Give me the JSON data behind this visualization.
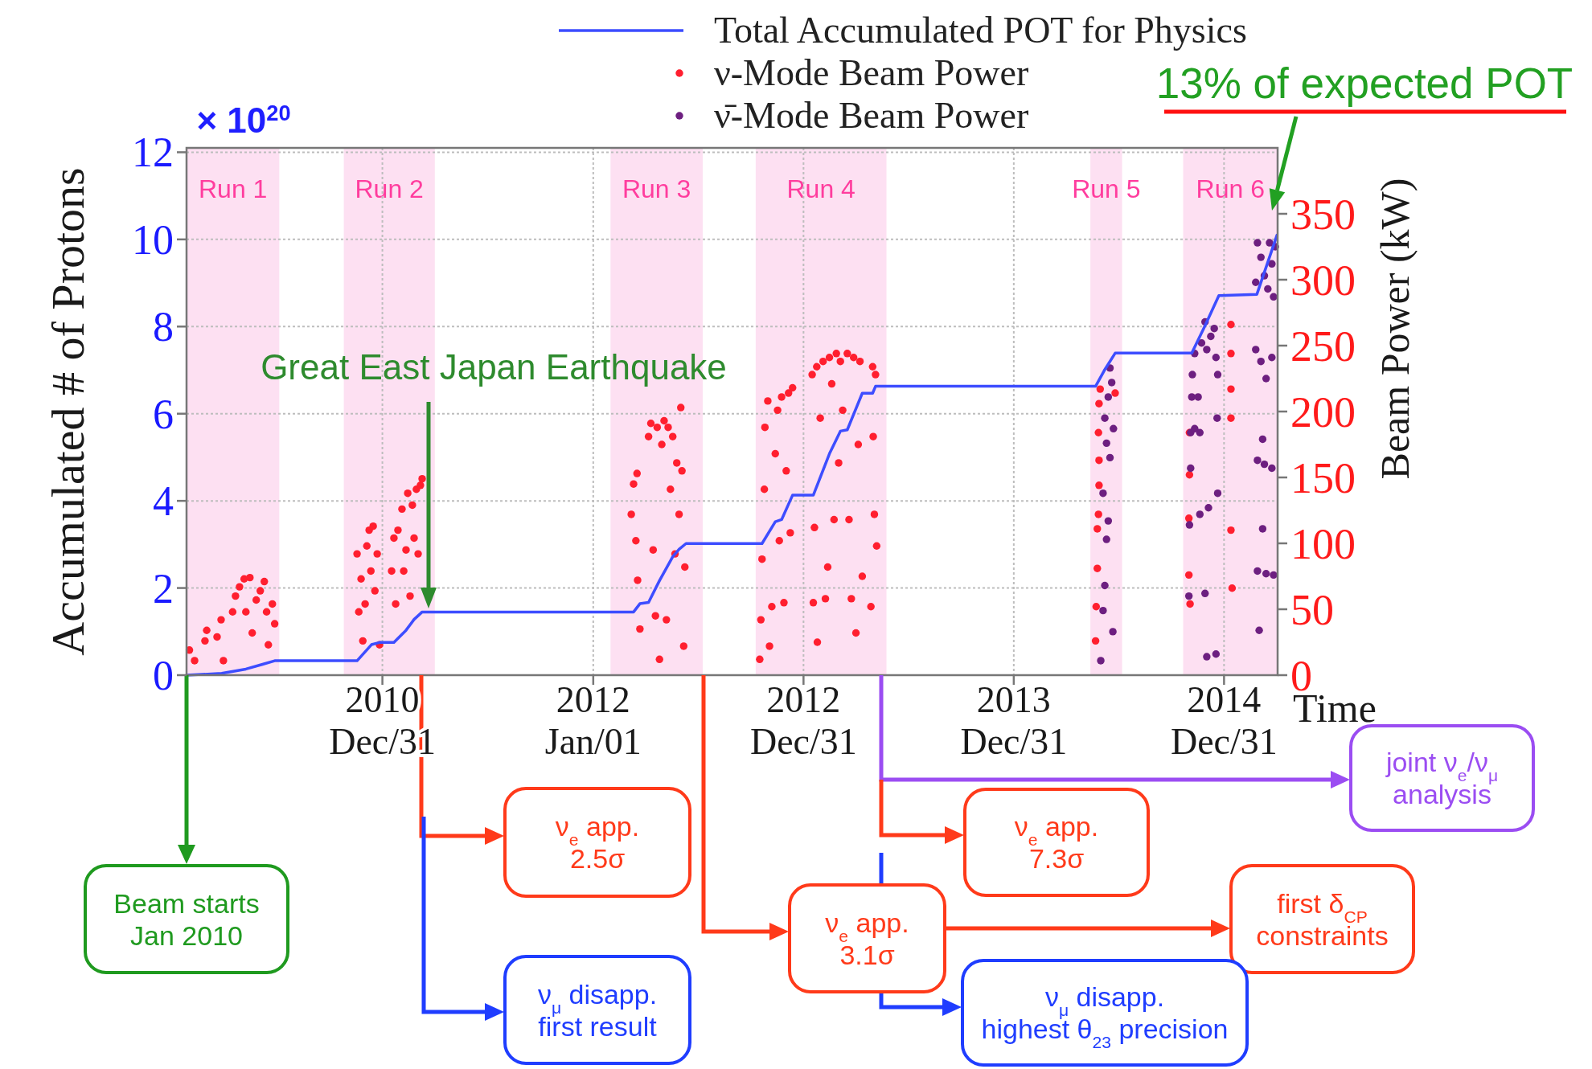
{
  "chart_data": {
    "type": "line",
    "xlabel": "Time",
    "ylabel": "Accumulated # of Protons",
    "y2label": "Beam Power (kW)",
    "xlim": [
      "2010-01-25",
      "2015-04-03"
    ],
    "xticks": [
      {
        "value": "2010-12-31",
        "label": "2010\nDec/31"
      },
      {
        "value": "2012-01-01",
        "label": "2012\nJan/01"
      },
      {
        "value": "2012-12-31",
        "label": "2012\nDec/31"
      },
      {
        "value": "2013-12-31",
        "label": "2013\nDec/31"
      },
      {
        "value": "2014-12-31",
        "label": "2014\nDec/31"
      }
    ],
    "ylim": [
      0,
      12.1
    ],
    "yticks": [
      0,
      2,
      4,
      6,
      8,
      10,
      12
    ],
    "y2lim": [
      0,
      400
    ],
    "y2ticks": [
      0,
      50,
      100,
      150,
      200,
      250,
      300,
      350
    ],
    "grid": true,
    "legend": "top",
    "marker": "circle",
    "series": [
      {
        "name": "Total Accumulated POT for Physics",
        "color": "#3d4dff",
        "marker": "none",
        "x": [
          "2010-01-25",
          "2010-03-27",
          "2010-05-08",
          "2010-06-06",
          "2010-06-27",
          "2010-11-17",
          "2010-12-12",
          "2010-12-26",
          "2011-01-20",
          "2011-02-10",
          "2011-02-24",
          "2011-03-10",
          "2012-03-11",
          "2012-03-22",
          "2012-04-06",
          "2012-04-25",
          "2012-05-18",
          "2012-05-29",
          "2012-06-10",
          "2012-10-20",
          "2012-11-12",
          "2012-11-23",
          "2012-12-12",
          "2013-01-17",
          "2013-02-14",
          "2013-03-05",
          "2013-03-17",
          "2013-04-12",
          "2013-04-30",
          "2013-05-05",
          "2014-05-22",
          "2014-06-06",
          "2014-06-25",
          "2014-11-05",
          "2014-11-27",
          "2014-12-22",
          "2015-02-26",
          "2015-04-02"
        ],
        "values": [
          0,
          0.04,
          0.14,
          0.25,
          0.33,
          0.33,
          0.7,
          0.75,
          0.75,
          1.03,
          1.28,
          1.45,
          1.45,
          1.64,
          1.67,
          2.17,
          2.72,
          2.89,
          3.02,
          3.02,
          3.52,
          3.57,
          4.13,
          4.13,
          5.08,
          5.6,
          5.63,
          6.47,
          6.47,
          6.63,
          6.63,
          6.99,
          7.39,
          7.39,
          7.99,
          8.71,
          8.74,
          10.1
        ]
      },
      {
        "name": "ν-Mode Beam Power",
        "type": "scatter",
        "axis": "y2",
        "color": "#ff1f2f",
        "x": [
          "2010-01-30",
          "2010-02-08",
          "2010-02-26",
          "2010-03-01",
          "2010-03-19",
          "2010-03-26",
          "2010-03-30",
          "2010-04-15",
          "2010-04-20",
          "2010-04-27",
          "2010-05-05",
          "2010-05-08",
          "2010-05-15",
          "2010-05-19",
          "2010-05-26",
          "2010-06-02",
          "2010-06-09",
          "2010-06-13",
          "2010-06-16",
          "2010-06-23",
          "2010-06-27",
          "2010-11-17",
          "2010-11-20",
          "2010-11-24",
          "2010-11-27",
          "2010-12-01",
          "2010-12-04",
          "2010-12-08",
          "2010-12-11",
          "2010-12-15",
          "2010-12-18",
          "2010-12-22",
          "2010-12-26",
          "2011-01-16",
          "2011-01-20",
          "2011-01-23",
          "2011-01-27",
          "2011-02-03",
          "2011-02-06",
          "2011-02-10",
          "2011-02-13",
          "2011-02-17",
          "2011-02-21",
          "2011-02-24",
          "2011-02-28",
          "2011-03-03",
          "2011-03-07",
          "2011-03-10",
          "2012-03-07",
          "2012-03-11",
          "2012-03-15",
          "2012-03-17",
          "2012-03-18",
          "2012-03-22",
          "2012-04-06",
          "2012-04-10",
          "2012-04-14",
          "2012-04-18",
          "2012-04-21",
          "2012-04-25",
          "2012-04-29",
          "2012-05-03",
          "2012-05-07",
          "2012-05-10",
          "2012-05-14",
          "2012-05-18",
          "2012-05-22",
          "2012-05-25",
          "2012-05-29",
          "2012-06-01",
          "2012-06-03",
          "2012-06-06",
          "2012-06-08",
          "2012-10-16",
          "2012-10-18",
          "2012-10-20",
          "2012-10-24",
          "2012-10-25",
          "2012-10-30",
          "2012-11-02",
          "2012-11-06",
          "2012-11-12",
          "2012-11-16",
          "2012-11-19",
          "2012-11-23",
          "2012-11-27",
          "2012-12-01",
          "2012-12-05",
          "2012-12-08",
          "2012-12-12",
          "2013-01-15",
          "2013-01-17",
          "2013-01-19",
          "2013-01-23",
          "2013-01-24",
          "2013-01-29",
          "2013-02-03",
          "2013-02-07",
          "2013-02-11",
          "2013-02-14",
          "2013-02-18",
          "2013-02-22",
          "2013-02-26",
          "2013-03-02",
          "2013-03-05",
          "2013-03-09",
          "2013-03-17",
          "2013-03-20",
          "2013-03-24",
          "2013-03-28",
          "2013-04-01",
          "2013-04-05",
          "2013-04-08",
          "2013-04-12",
          "2013-04-27",
          "2013-04-30",
          "2013-05-01",
          "2013-05-03",
          "2013-05-05",
          "2013-05-07",
          "2014-05-22",
          "2014-05-23",
          "2014-05-25",
          "2014-05-25",
          "2014-05-27",
          "2014-05-28",
          "2014-05-28",
          "2014-05-27",
          "2014-05-28",
          "2014-05-30",
          "2014-06-25",
          "2014-10-31",
          "2014-10-31",
          "2014-11-01",
          "2014-11-01",
          "2014-11-02",
          "2015-01-12",
          "2015-01-12",
          "2015-01-12",
          "2015-01-12",
          "2015-01-12",
          "2015-01-14"
        ],
        "values": [
          19,
          11,
          26,
          34,
          29,
          42,
          11,
          48,
          60,
          67,
          73,
          48,
          74,
          32,
          57,
          64,
          71,
          48,
          23,
          54,
          39,
          92,
          48,
          73,
          26,
          54,
          98,
          110,
          79,
          113,
          64,
          92,
          23,
          79,
          104,
          54,
          110,
          126,
          79,
          95,
          138,
          60,
          129,
          104,
          141,
          92,
          144,
          149,
          122,
          145,
          102,
          153,
          72,
          35,
          181,
          191,
          95,
          45,
          188,
          12,
          175,
          193,
          42,
          188,
          141,
          181,
          92,
          161,
          122,
          203,
          155,
          22,
          82,
          12,
          42,
          88,
          141,
          188,
          208,
          22,
          52,
          168,
          201,
          102,
          211,
          55,
          155,
          214,
          108,
          218,
          228,
          55,
          112,
          234,
          25,
          195,
          238,
          58,
          82,
          241,
          221,
          118,
          244,
          161,
          238,
          201,
          244,
          118,
          58,
          241,
          32,
          175,
          238,
          75,
          52,
          234,
          181,
          122,
          228,
          98,
          26,
          52,
          81,
          111,
          122,
          144,
          163,
          184,
          206,
          217,
          214,
          76,
          119,
          152,
          184,
          54,
          266,
          244,
          217,
          195,
          110,
          66
        ]
      },
      {
        "name": "ν̄-Mode Beam Power",
        "type": "scatter",
        "axis": "y2",
        "color": "#6d1f80",
        "x": [
          "2014-05-31",
          "2014-06-04",
          "2014-06-07",
          "2014-06-10",
          "2014-06-13",
          "2014-06-04",
          "2014-06-16",
          "2014-06-10",
          "2014-06-22",
          "2014-06-07",
          "2014-06-13",
          "2014-06-19",
          "2014-06-16",
          "2014-06-21",
          "2014-10-31",
          "2014-11-01",
          "2014-11-03",
          "2014-11-03",
          "2014-11-05",
          "2014-11-06",
          "2014-11-10",
          "2014-11-16",
          "2014-11-19",
          "2014-11-19",
          "2014-11-22",
          "2014-11-28",
          "2014-12-01",
          "2014-12-04",
          "2014-12-08",
          "2014-12-14",
          "2014-12-17",
          "2014-12-19",
          "2014-12-20",
          "2014-12-20",
          "2014-12-01",
          "2014-12-17",
          "2014-11-28",
          "2014-11-10",
          "2015-02-24",
          "2015-03-05",
          "2015-03-14",
          "2015-03-24",
          "2015-03-08",
          "2015-02-27",
          "2015-03-11",
          "2015-03-24",
          "2015-03-08",
          "2015-02-27",
          "2015-03-14",
          "2015-03-27",
          "2015-03-02",
          "2015-02-27",
          "2015-03-05",
          "2015-03-11",
          "2015-03-17",
          "2015-03-24",
          "2015-03-30",
          "2015-02-24",
          "2015-03-20",
          "2015-03-27"
        ],
        "values": [
          11,
          49,
          68,
          103,
          117,
          138,
          165,
          176,
          187,
          195,
          211,
          222,
          233,
          33,
          60,
          114,
          157,
          184,
          211,
          228,
          244,
          211,
          184,
          122,
          252,
          268,
          247,
          127,
          257,
          263,
          241,
          195,
          138,
          228,
          14,
          16,
          62,
          187,
          247,
          238,
          225,
          241,
          179,
          163,
          160,
          157,
          111,
          79,
          77,
          76,
          34,
          328,
          317,
          303,
          293,
          312,
          325,
          298,
          328,
          287
        ]
      }
    ],
    "bands": [
      {
        "axis": "x",
        "from": "2010-01-25",
        "to": "2010-07-05",
        "label": "Run 1",
        "color": "#fde0f2"
      },
      {
        "axis": "x",
        "from": "2010-10-25",
        "to": "2011-04-01",
        "label": "Run 2",
        "color": "#fde0f2"
      },
      {
        "axis": "x",
        "from": "2012-01-31",
        "to": "2012-07-09",
        "label": "Run 3",
        "color": "#fde0f2"
      },
      {
        "axis": "x",
        "from": "2012-10-09",
        "to": "2013-05-24",
        "label": "Run 4",
        "color": "#fde0f2"
      },
      {
        "axis": "x",
        "from": "2014-05-13",
        "to": "2014-07-07",
        "label": "Run 5",
        "color": "#fde0f2"
      },
      {
        "axis": "x",
        "from": "2014-10-21",
        "to": "2015-04-03",
        "label": "Run 6",
        "color": "#fde0f2"
      }
    ],
    "annotations": [
      "13% of expected POT",
      "× 10$^{20}$",
      "Great East Japan Earthquake",
      "Beam starts\nJan 2010",
      "ν$_{e}$ app.\n2.5σ",
      "ν$_{μ}$ disapp.\nfirst result",
      "ν$_{e}$ app.\n3.1σ",
      "first δ$_{CP}$\nconstraints",
      "joint ν$_{e}$/ν$_{μ}$\nanalysis",
      "ν$_{e}$ app.\n7.3σ",
      "ν$_{μ}$ disapp.\nhighest θ$_{23}$ precision"
    ]
  }
}
